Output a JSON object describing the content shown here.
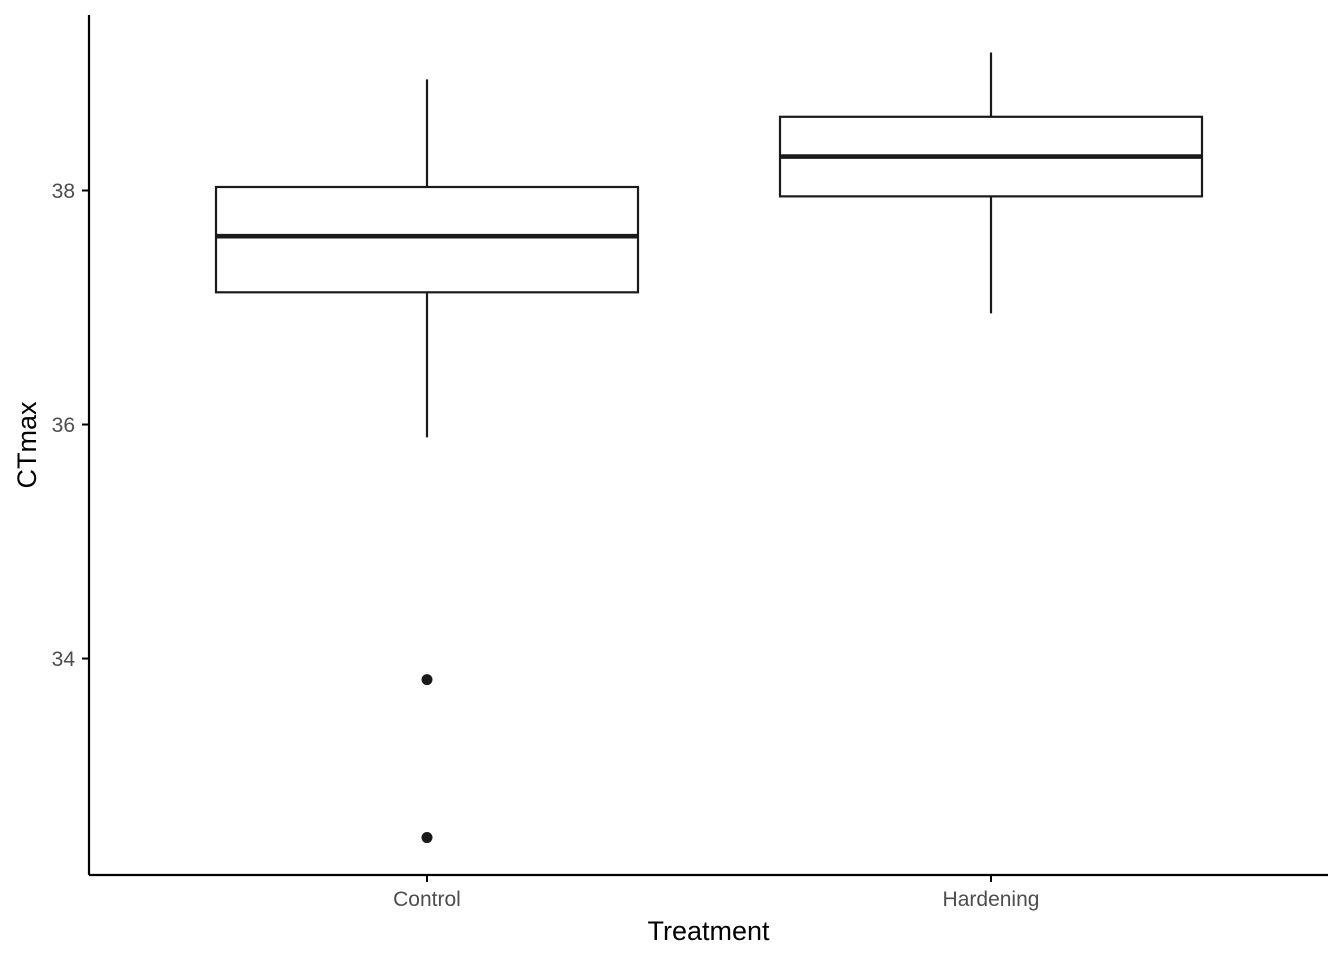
{
  "chart_data": {
    "type": "boxplot",
    "title": "",
    "xlabel": "Treatment",
    "ylabel": "CTmax",
    "categories": [
      "Control",
      "Hardening"
    ],
    "boxes": [
      {
        "category": "Control",
        "whisker_low": 35.89,
        "q1": 37.13,
        "median": 37.61,
        "q3": 38.03,
        "whisker_high": 38.95,
        "outliers": [
          33.82,
          32.47
        ]
      },
      {
        "category": "Hardening",
        "whisker_low": 36.95,
        "q1": 37.95,
        "median": 38.29,
        "q3": 38.63,
        "whisker_high": 39.18,
        "outliers": []
      }
    ],
    "yticks": [
      34,
      36,
      38
    ],
    "ytick_labels": [
      "34",
      "36",
      "38"
    ],
    "ylim": [
      32.15,
      39.5
    ],
    "grid": false,
    "legend": "none",
    "colors": {
      "box_stroke": "#1a1a1a",
      "box_fill": "#ffffff",
      "outlier": "#1a1a1a",
      "axis": "#000000",
      "tick_label": "#4d4d4d"
    }
  }
}
